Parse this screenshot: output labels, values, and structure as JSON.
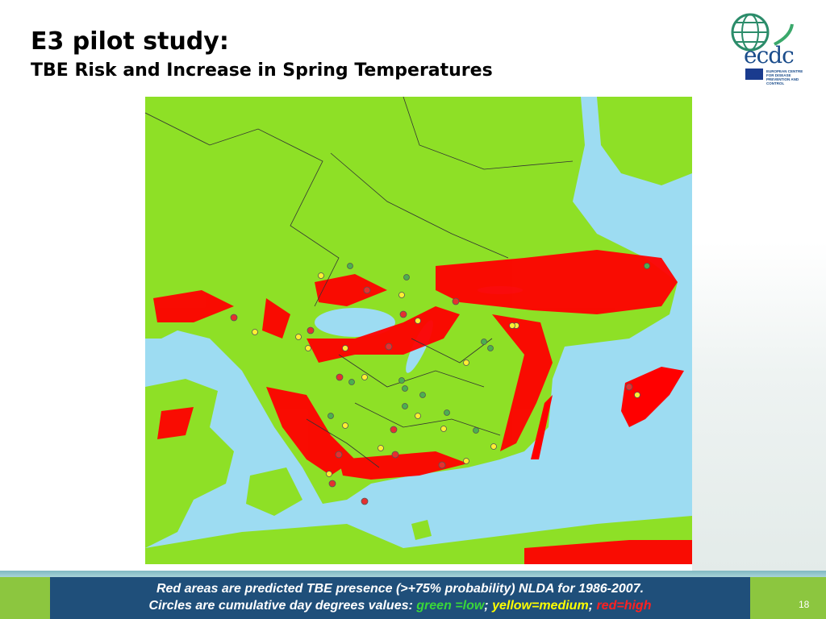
{
  "slide": {
    "title": "E3 pilot study:",
    "subtitle": "TBE Risk and Increase in Spring Temperatures",
    "page_number": "18"
  },
  "logo": {
    "text": "ecdc",
    "sub": "EUROPEAN CENTRE FOR DISEASE PREVENTION AND CONTROL"
  },
  "caption": {
    "line1": "Red areas are predicted TBE presence (>+75% probability) NLDA for 1986-2007.",
    "line2_prefix": "Circles are cumulative day degrees values: ",
    "green_label": "green =low",
    "sep1": ";  ",
    "yellow_label": "yellow=medium",
    "sep2": "; ",
    "red_label": "red=high"
  },
  "colors": {
    "land": "#8ee026",
    "sea": "#9ddcf2",
    "risk": "#ff0000",
    "low": "#4caf50",
    "medium": "#ffee33",
    "high": "#e53030"
  }
}
